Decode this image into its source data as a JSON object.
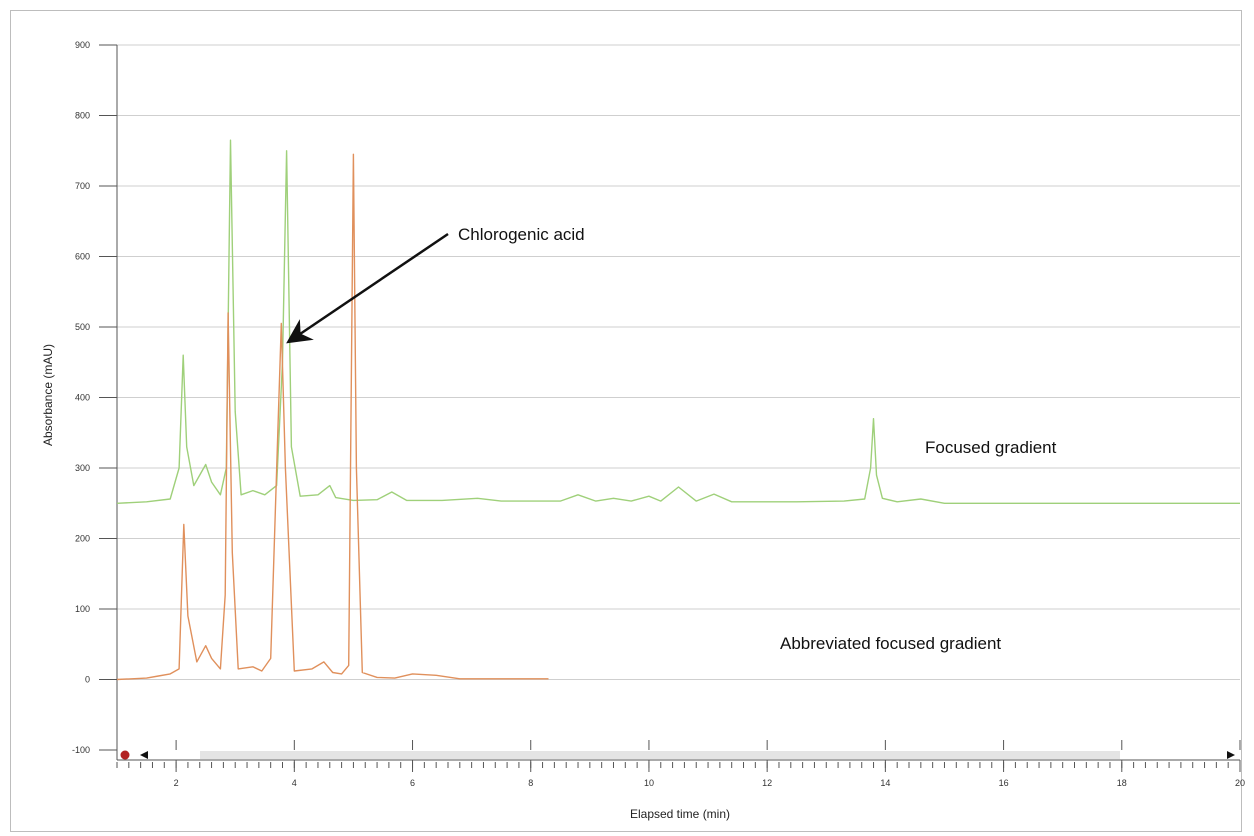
{
  "chart_data": {
    "type": "line",
    "xlabel": "Elapsed time (min)",
    "ylabel": "Absorbance (mAU)",
    "xlim": [
      1,
      20
    ],
    "ylim": [
      -100,
      900
    ],
    "xticks": [
      2,
      4,
      6,
      8,
      10,
      12,
      14,
      16,
      18,
      20
    ],
    "yticks": [
      -100,
      0,
      100,
      200,
      300,
      400,
      500,
      600,
      700,
      800,
      900
    ],
    "grid": "horizontal",
    "colors": {
      "focused": "#9fd07a",
      "abbreviated": "#e0905c",
      "grid": "#cfcfcf",
      "axis": "#555555",
      "arrow": "#111111"
    },
    "series": [
      {
        "name": "Focused gradient",
        "x": [
          1.0,
          1.5,
          1.9,
          2.05,
          2.12,
          2.18,
          2.3,
          2.5,
          2.6,
          2.75,
          2.85,
          2.92,
          3.0,
          3.1,
          3.3,
          3.5,
          3.7,
          3.8,
          3.87,
          3.95,
          4.1,
          4.4,
          4.6,
          4.7,
          5.0,
          5.4,
          5.65,
          5.9,
          6.5,
          7.1,
          7.5,
          8.5,
          8.8,
          9.1,
          9.4,
          9.7,
          10.0,
          10.2,
          10.5,
          10.8,
          11.1,
          11.4,
          12.5,
          13.3,
          13.65,
          13.75,
          13.8,
          13.85,
          13.95,
          14.2,
          14.6,
          15.0,
          20.0
        ],
        "y": [
          250,
          252,
          256,
          300,
          460,
          330,
          275,
          305,
          280,
          262,
          300,
          765,
          380,
          262,
          268,
          262,
          275,
          450,
          750,
          330,
          260,
          262,
          275,
          258,
          254,
          255,
          266,
          254,
          254,
          257,
          253,
          253,
          262,
          253,
          257,
          253,
          260,
          253,
          273,
          253,
          263,
          252,
          252,
          253,
          256,
          300,
          370,
          290,
          257,
          252,
          256,
          250,
          250
        ]
      },
      {
        "name": "Abbreviated focused gradient",
        "x": [
          1.0,
          1.5,
          1.7,
          1.9,
          2.05,
          2.13,
          2.2,
          2.35,
          2.5,
          2.6,
          2.75,
          2.83,
          2.88,
          2.95,
          3.05,
          3.3,
          3.45,
          3.6,
          3.72,
          3.78,
          3.85,
          4.0,
          4.3,
          4.5,
          4.65,
          4.8,
          4.92,
          5.0,
          5.05,
          5.15,
          5.4,
          5.7,
          6.0,
          6.4,
          6.8,
          7.5,
          8.3
        ],
        "y": [
          0,
          2,
          5,
          8,
          15,
          220,
          90,
          25,
          48,
          30,
          15,
          120,
          520,
          180,
          15,
          18,
          12,
          30,
          350,
          505,
          300,
          12,
          15,
          25,
          10,
          8,
          20,
          745,
          300,
          10,
          3,
          2,
          8,
          6,
          1,
          1,
          1
        ]
      }
    ],
    "annotations": [
      {
        "text": "Chlorogenic acid",
        "points_to": {
          "x": 3.83,
          "y": 475
        }
      },
      {
        "text": "Focused gradient"
      },
      {
        "text": "Abbreviated focused gradient"
      }
    ]
  }
}
